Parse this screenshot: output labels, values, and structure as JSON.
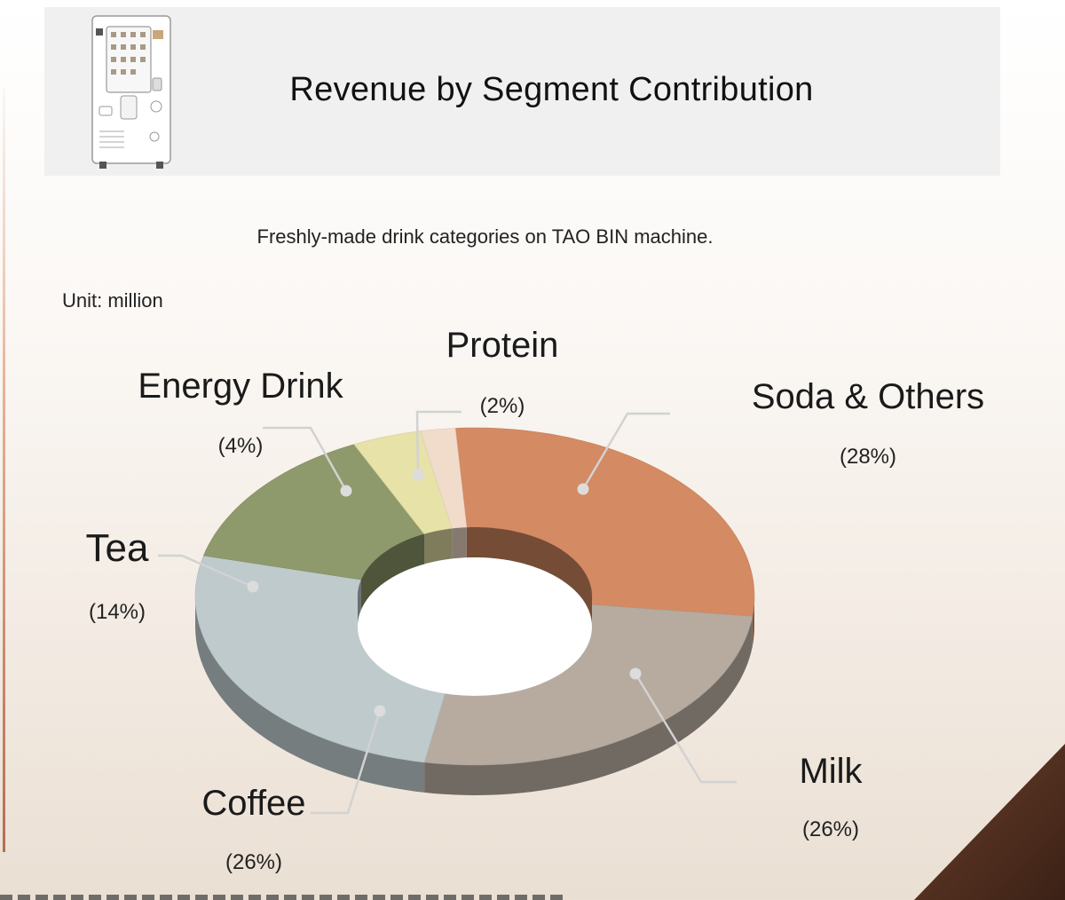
{
  "header": {
    "title": "Revenue by Segment Contribution"
  },
  "subtitle": "Freshly-made drink categories on TAO BIN machine.",
  "unit": "Unit: million",
  "colors": {
    "header_band": "#f0f0f0",
    "corner": "#4a2a1c"
  },
  "chart_data": {
    "type": "pie",
    "variant": "3d-donut",
    "title": "Revenue by Segment Contribution",
    "subtitle": "Freshly-made drink categories on TAO BIN machine.",
    "unit": "Unit: million",
    "slices": [
      {
        "label": "Soda & Others",
        "pct_label": "(28%)",
        "value": 28,
        "color": "#d48a62"
      },
      {
        "label": "Milk",
        "pct_label": "(26%)",
        "value": 26,
        "color": "#b7aba0"
      },
      {
        "label": "Coffee",
        "pct_label": "(26%)",
        "value": 26,
        "color": "#bfcacd"
      },
      {
        "label": "Tea",
        "pct_label": "(14%)",
        "value": 14,
        "color": "#8e9a6b"
      },
      {
        "label": "Energy Drink",
        "pct_label": "(4%)",
        "value": 4,
        "color": "#e6e2a8"
      },
      {
        "label": "Protein",
        "pct_label": "(2%)",
        "value": 2,
        "color": "#f1dccb"
      }
    ]
  }
}
